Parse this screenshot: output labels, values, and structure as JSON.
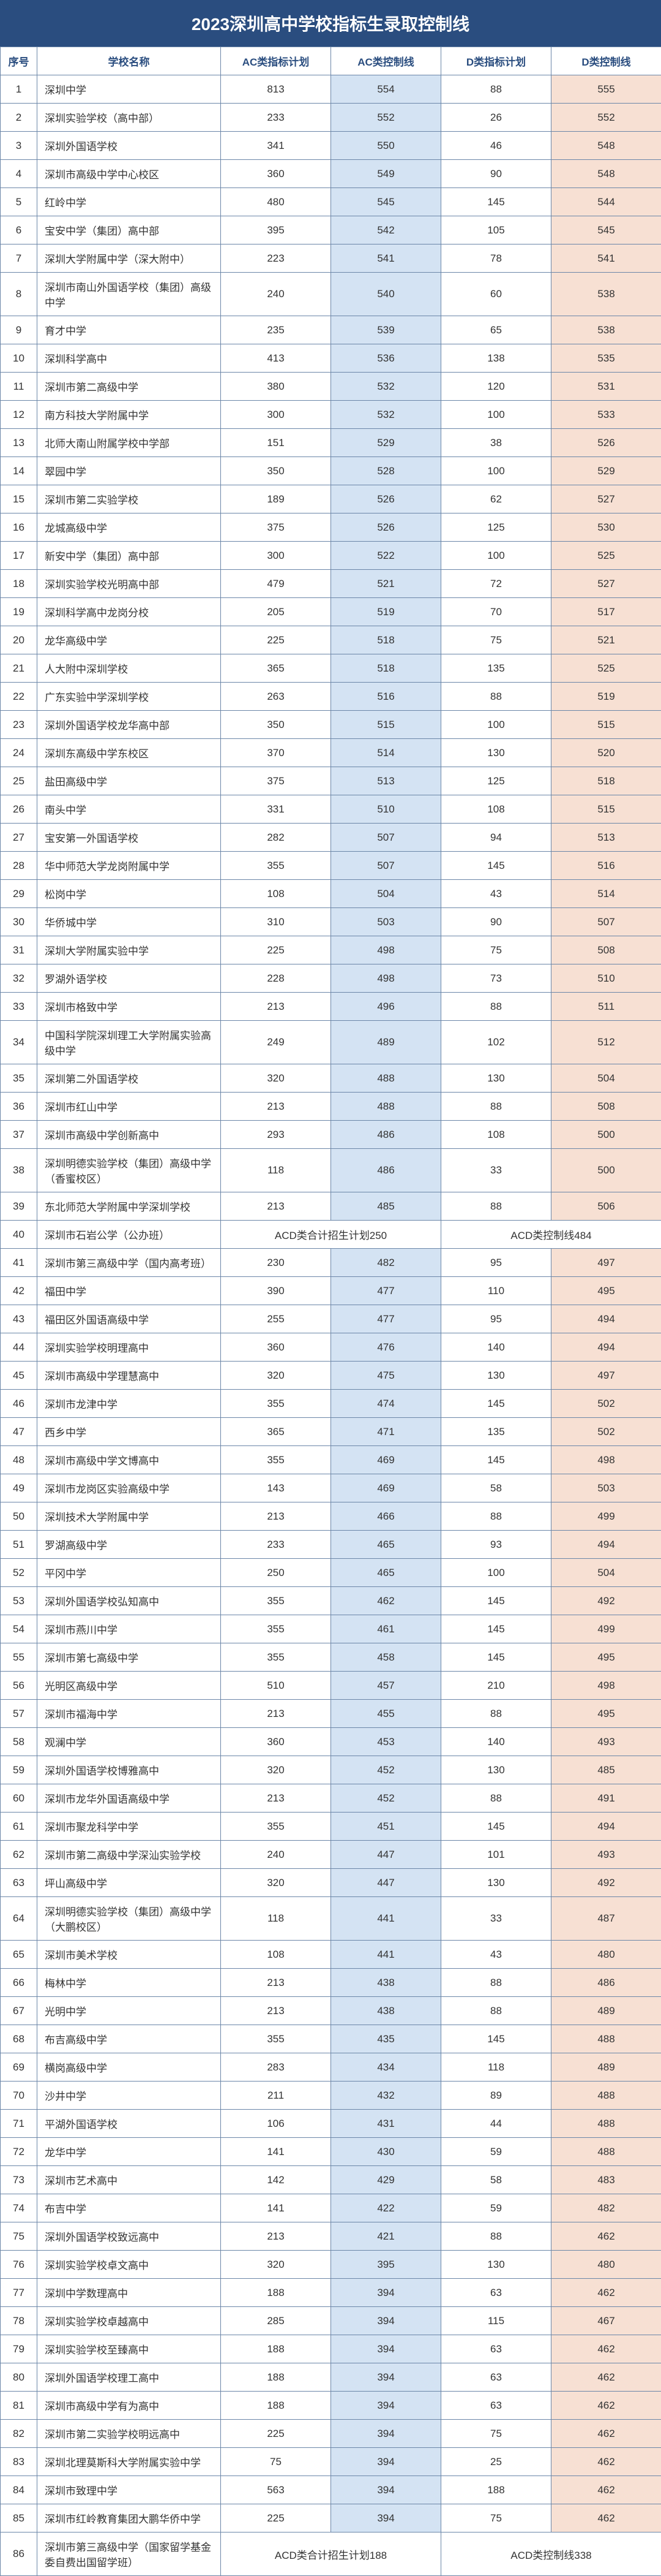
{
  "title": "2023深圳高中学校指标生录取控制线",
  "headers": {
    "seq": "序号",
    "name": "学校名称",
    "ac_plan": "AC类指标计划",
    "ac_ctrl": "AC类控制线",
    "d_plan": "D类指标计划",
    "d_ctrl": "D类控制线"
  },
  "rows": [
    {
      "seq": 1,
      "name": "深圳中学",
      "ac_plan": 813,
      "ac_ctrl": 554,
      "d_plan": 88,
      "d_ctrl": 555
    },
    {
      "seq": 2,
      "name": "深圳实验学校（高中部）",
      "ac_plan": 233,
      "ac_ctrl": 552,
      "d_plan": 26,
      "d_ctrl": 552
    },
    {
      "seq": 3,
      "name": "深圳外国语学校",
      "ac_plan": 341,
      "ac_ctrl": 550,
      "d_plan": 46,
      "d_ctrl": 548
    },
    {
      "seq": 4,
      "name": "深圳市高级中学中心校区",
      "ac_plan": 360,
      "ac_ctrl": 549,
      "d_plan": 90,
      "d_ctrl": 548
    },
    {
      "seq": 5,
      "name": "红岭中学",
      "ac_plan": 480,
      "ac_ctrl": 545,
      "d_plan": 145,
      "d_ctrl": 544
    },
    {
      "seq": 6,
      "name": "宝安中学（集团）高中部",
      "ac_plan": 395,
      "ac_ctrl": 542,
      "d_plan": 105,
      "d_ctrl": 545
    },
    {
      "seq": 7,
      "name": "深圳大学附属中学（深大附中）",
      "ac_plan": 223,
      "ac_ctrl": 541,
      "d_plan": 78,
      "d_ctrl": 541
    },
    {
      "seq": 8,
      "name": "深圳市南山外国语学校（集团）高级中学",
      "ac_plan": 240,
      "ac_ctrl": 540,
      "d_plan": 60,
      "d_ctrl": 538
    },
    {
      "seq": 9,
      "name": "育才中学",
      "ac_plan": 235,
      "ac_ctrl": 539,
      "d_plan": 65,
      "d_ctrl": 538
    },
    {
      "seq": 10,
      "name": "深圳科学高中",
      "ac_plan": 413,
      "ac_ctrl": 536,
      "d_plan": 138,
      "d_ctrl": 535
    },
    {
      "seq": 11,
      "name": "深圳市第二高级中学",
      "ac_plan": 380,
      "ac_ctrl": 532,
      "d_plan": 120,
      "d_ctrl": 531
    },
    {
      "seq": 12,
      "name": "南方科技大学附属中学",
      "ac_plan": 300,
      "ac_ctrl": 532,
      "d_plan": 100,
      "d_ctrl": 533
    },
    {
      "seq": 13,
      "name": "北师大南山附属学校中学部",
      "ac_plan": 151,
      "ac_ctrl": 529,
      "d_plan": 38,
      "d_ctrl": 526
    },
    {
      "seq": 14,
      "name": "翠园中学",
      "ac_plan": 350,
      "ac_ctrl": 528,
      "d_plan": 100,
      "d_ctrl": 529
    },
    {
      "seq": 15,
      "name": "深圳市第二实验学校",
      "ac_plan": 189,
      "ac_ctrl": 526,
      "d_plan": 62,
      "d_ctrl": 527
    },
    {
      "seq": 16,
      "name": "龙城高级中学",
      "ac_plan": 375,
      "ac_ctrl": 526,
      "d_plan": 125,
      "d_ctrl": 530
    },
    {
      "seq": 17,
      "name": "新安中学（集团）高中部",
      "ac_plan": 300,
      "ac_ctrl": 522,
      "d_plan": 100,
      "d_ctrl": 525
    },
    {
      "seq": 18,
      "name": "深圳实验学校光明高中部",
      "ac_plan": 479,
      "ac_ctrl": 521,
      "d_plan": 72,
      "d_ctrl": 527
    },
    {
      "seq": 19,
      "name": "深圳科学高中龙岗分校",
      "ac_plan": 205,
      "ac_ctrl": 519,
      "d_plan": 70,
      "d_ctrl": 517
    },
    {
      "seq": 20,
      "name": "龙华高级中学",
      "ac_plan": 225,
      "ac_ctrl": 518,
      "d_plan": 75,
      "d_ctrl": 521
    },
    {
      "seq": 21,
      "name": "人大附中深圳学校",
      "ac_plan": 365,
      "ac_ctrl": 518,
      "d_plan": 135,
      "d_ctrl": 525
    },
    {
      "seq": 22,
      "name": "广东实验中学深圳学校",
      "ac_plan": 263,
      "ac_ctrl": 516,
      "d_plan": 88,
      "d_ctrl": 519
    },
    {
      "seq": 23,
      "name": "深圳外国语学校龙华高中部",
      "ac_plan": 350,
      "ac_ctrl": 515,
      "d_plan": 100,
      "d_ctrl": 515
    },
    {
      "seq": 24,
      "name": "深圳东高级中学东校区",
      "ac_plan": 370,
      "ac_ctrl": 514,
      "d_plan": 130,
      "d_ctrl": 520
    },
    {
      "seq": 25,
      "name": "盐田高级中学",
      "ac_plan": 375,
      "ac_ctrl": 513,
      "d_plan": 125,
      "d_ctrl": 518
    },
    {
      "seq": 26,
      "name": "南头中学",
      "ac_plan": 331,
      "ac_ctrl": 510,
      "d_plan": 108,
      "d_ctrl": 515
    },
    {
      "seq": 27,
      "name": "宝安第一外国语学校",
      "ac_plan": 282,
      "ac_ctrl": 507,
      "d_plan": 94,
      "d_ctrl": 513
    },
    {
      "seq": 28,
      "name": "华中师范大学龙岗附属中学",
      "ac_plan": 355,
      "ac_ctrl": 507,
      "d_plan": 145,
      "d_ctrl": 516
    },
    {
      "seq": 29,
      "name": "松岗中学",
      "ac_plan": 108,
      "ac_ctrl": 504,
      "d_plan": 43,
      "d_ctrl": 514
    },
    {
      "seq": 30,
      "name": "华侨城中学",
      "ac_plan": 310,
      "ac_ctrl": 503,
      "d_plan": 90,
      "d_ctrl": 507
    },
    {
      "seq": 31,
      "name": "深圳大学附属实验中学",
      "ac_plan": 225,
      "ac_ctrl": 498,
      "d_plan": 75,
      "d_ctrl": 508
    },
    {
      "seq": 32,
      "name": "罗湖外语学校",
      "ac_plan": 228,
      "ac_ctrl": 498,
      "d_plan": 73,
      "d_ctrl": 510
    },
    {
      "seq": 33,
      "name": "深圳市格致中学",
      "ac_plan": 213,
      "ac_ctrl": 496,
      "d_plan": 88,
      "d_ctrl": 511
    },
    {
      "seq": 34,
      "name": "中国科学院深圳理工大学附属实验高级中学",
      "ac_plan": 249,
      "ac_ctrl": 489,
      "d_plan": 102,
      "d_ctrl": 512
    },
    {
      "seq": 35,
      "name": "深圳第二外国语学校",
      "ac_plan": 320,
      "ac_ctrl": 488,
      "d_plan": 130,
      "d_ctrl": 504
    },
    {
      "seq": 36,
      "name": "深圳市红山中学",
      "ac_plan": 213,
      "ac_ctrl": 488,
      "d_plan": 88,
      "d_ctrl": 508
    },
    {
      "seq": 37,
      "name": "深圳市高级中学创新高中",
      "ac_plan": 293,
      "ac_ctrl": 486,
      "d_plan": 108,
      "d_ctrl": 500
    },
    {
      "seq": 38,
      "name": "深圳明德实验学校（集团）高级中学（香蜜校区）",
      "ac_plan": 118,
      "ac_ctrl": 486,
      "d_plan": 33,
      "d_ctrl": 500
    },
    {
      "seq": 39,
      "name": "东北师范大学附属中学深圳学校",
      "ac_plan": 213,
      "ac_ctrl": 485,
      "d_plan": 88,
      "d_ctrl": 506
    },
    {
      "seq": 40,
      "name": "深圳市石岩公学（公办班）",
      "merge_ac": "ACD类合计招生计划250",
      "merge_d": "ACD类控制线484"
    },
    {
      "seq": 41,
      "name": "深圳市第三高级中学（国内高考班）",
      "ac_plan": 230,
      "ac_ctrl": 482,
      "d_plan": 95,
      "d_ctrl": 497
    },
    {
      "seq": 42,
      "name": "福田中学",
      "ac_plan": 390,
      "ac_ctrl": 477,
      "d_plan": 110,
      "d_ctrl": 495
    },
    {
      "seq": 43,
      "name": "福田区外国语高级中学",
      "ac_plan": 255,
      "ac_ctrl": 477,
      "d_plan": 95,
      "d_ctrl": 494
    },
    {
      "seq": 44,
      "name": "深圳实验学校明理高中",
      "ac_plan": 360,
      "ac_ctrl": 476,
      "d_plan": 140,
      "d_ctrl": 494
    },
    {
      "seq": 45,
      "name": "深圳市高级中学理慧高中",
      "ac_plan": 320,
      "ac_ctrl": 475,
      "d_plan": 130,
      "d_ctrl": 497
    },
    {
      "seq": 46,
      "name": "深圳市龙津中学",
      "ac_plan": 355,
      "ac_ctrl": 474,
      "d_plan": 145,
      "d_ctrl": 502
    },
    {
      "seq": 47,
      "name": "西乡中学",
      "ac_plan": 365,
      "ac_ctrl": 471,
      "d_plan": 135,
      "d_ctrl": 502
    },
    {
      "seq": 48,
      "name": "深圳市高级中学文博高中",
      "ac_plan": 355,
      "ac_ctrl": 469,
      "d_plan": 145,
      "d_ctrl": 498
    },
    {
      "seq": 49,
      "name": "深圳市龙岗区实验高级中学",
      "ac_plan": 143,
      "ac_ctrl": 469,
      "d_plan": 58,
      "d_ctrl": 503
    },
    {
      "seq": 50,
      "name": "深圳技术大学附属中学",
      "ac_plan": 213,
      "ac_ctrl": 466,
      "d_plan": 88,
      "d_ctrl": 499
    },
    {
      "seq": 51,
      "name": "罗湖高级中学",
      "ac_plan": 233,
      "ac_ctrl": 465,
      "d_plan": 93,
      "d_ctrl": 494
    },
    {
      "seq": 52,
      "name": "平冈中学",
      "ac_plan": 250,
      "ac_ctrl": 465,
      "d_plan": 100,
      "d_ctrl": 504
    },
    {
      "seq": 53,
      "name": "深圳外国语学校弘知高中",
      "ac_plan": 355,
      "ac_ctrl": 462,
      "d_plan": 145,
      "d_ctrl": 492
    },
    {
      "seq": 54,
      "name": "深圳市燕川中学",
      "ac_plan": 355,
      "ac_ctrl": 461,
      "d_plan": 145,
      "d_ctrl": 499
    },
    {
      "seq": 55,
      "name": "深圳市第七高级中学",
      "ac_plan": 355,
      "ac_ctrl": 458,
      "d_plan": 145,
      "d_ctrl": 495
    },
    {
      "seq": 56,
      "name": "光明区高级中学",
      "ac_plan": 510,
      "ac_ctrl": 457,
      "d_plan": 210,
      "d_ctrl": 498
    },
    {
      "seq": 57,
      "name": "深圳市福海中学",
      "ac_plan": 213,
      "ac_ctrl": 455,
      "d_plan": 88,
      "d_ctrl": 495
    },
    {
      "seq": 58,
      "name": "观澜中学",
      "ac_plan": 360,
      "ac_ctrl": 453,
      "d_plan": 140,
      "d_ctrl": 493
    },
    {
      "seq": 59,
      "name": "深圳外国语学校博雅高中",
      "ac_plan": 320,
      "ac_ctrl": 452,
      "d_plan": 130,
      "d_ctrl": 485
    },
    {
      "seq": 60,
      "name": "深圳市龙华外国语高级中学",
      "ac_plan": 213,
      "ac_ctrl": 452,
      "d_plan": 88,
      "d_ctrl": 491
    },
    {
      "seq": 61,
      "name": "深圳市聚龙科学中学",
      "ac_plan": 355,
      "ac_ctrl": 451,
      "d_plan": 145,
      "d_ctrl": 494
    },
    {
      "seq": 62,
      "name": "深圳市第二高级中学深汕实验学校",
      "ac_plan": 240,
      "ac_ctrl": 447,
      "d_plan": 101,
      "d_ctrl": 493
    },
    {
      "seq": 63,
      "name": "坪山高级中学",
      "ac_plan": 320,
      "ac_ctrl": 447,
      "d_plan": 130,
      "d_ctrl": 492
    },
    {
      "seq": 64,
      "name": "深圳明德实验学校（集团）高级中学（大鹏校区）",
      "ac_plan": 118,
      "ac_ctrl": 441,
      "d_plan": 33,
      "d_ctrl": 487
    },
    {
      "seq": 65,
      "name": "深圳市美术学校",
      "ac_plan": 108,
      "ac_ctrl": 441,
      "d_plan": 43,
      "d_ctrl": 480
    },
    {
      "seq": 66,
      "name": "梅林中学",
      "ac_plan": 213,
      "ac_ctrl": 438,
      "d_plan": 88,
      "d_ctrl": 486
    },
    {
      "seq": 67,
      "name": "光明中学",
      "ac_plan": 213,
      "ac_ctrl": 438,
      "d_plan": 88,
      "d_ctrl": 489
    },
    {
      "seq": 68,
      "name": "布吉高级中学",
      "ac_plan": 355,
      "ac_ctrl": 435,
      "d_plan": 145,
      "d_ctrl": 488
    },
    {
      "seq": 69,
      "name": "横岗高级中学",
      "ac_plan": 283,
      "ac_ctrl": 434,
      "d_plan": 118,
      "d_ctrl": 489
    },
    {
      "seq": 70,
      "name": "沙井中学",
      "ac_plan": 211,
      "ac_ctrl": 432,
      "d_plan": 89,
      "d_ctrl": 488
    },
    {
      "seq": 71,
      "name": "平湖外国语学校",
      "ac_plan": 106,
      "ac_ctrl": 431,
      "d_plan": 44,
      "d_ctrl": 488
    },
    {
      "seq": 72,
      "name": "龙华中学",
      "ac_plan": 141,
      "ac_ctrl": 430,
      "d_plan": 59,
      "d_ctrl": 488
    },
    {
      "seq": 73,
      "name": "深圳市艺术高中",
      "ac_plan": 142,
      "ac_ctrl": 429,
      "d_plan": 58,
      "d_ctrl": 483
    },
    {
      "seq": 74,
      "name": "布吉中学",
      "ac_plan": 141,
      "ac_ctrl": 422,
      "d_plan": 59,
      "d_ctrl": 482
    },
    {
      "seq": 75,
      "name": "深圳外国语学校致远高中",
      "ac_plan": 213,
      "ac_ctrl": 421,
      "d_plan": 88,
      "d_ctrl": 462
    },
    {
      "seq": 76,
      "name": "深圳实验学校卓文高中",
      "ac_plan": 320,
      "ac_ctrl": 395,
      "d_plan": 130,
      "d_ctrl": 480
    },
    {
      "seq": 77,
      "name": "深圳中学数理高中",
      "ac_plan": 188,
      "ac_ctrl": 394,
      "d_plan": 63,
      "d_ctrl": 462
    },
    {
      "seq": 78,
      "name": "深圳实验学校卓越高中",
      "ac_plan": 285,
      "ac_ctrl": 394,
      "d_plan": 115,
      "d_ctrl": 467
    },
    {
      "seq": 79,
      "name": "深圳实验学校至臻高中",
      "ac_plan": 188,
      "ac_ctrl": 394,
      "d_plan": 63,
      "d_ctrl": 462
    },
    {
      "seq": 80,
      "name": "深圳外国语学校理工高中",
      "ac_plan": 188,
      "ac_ctrl": 394,
      "d_plan": 63,
      "d_ctrl": 462
    },
    {
      "seq": 81,
      "name": "深圳市高级中学有为高中",
      "ac_plan": 188,
      "ac_ctrl": 394,
      "d_plan": 63,
      "d_ctrl": 462
    },
    {
      "seq": 82,
      "name": "深圳市第二实验学校明远高中",
      "ac_plan": 225,
      "ac_ctrl": 394,
      "d_plan": 75,
      "d_ctrl": 462
    },
    {
      "seq": 83,
      "name": "深圳北理莫斯科大学附属实验中学",
      "ac_plan": 75,
      "ac_ctrl": 394,
      "d_plan": 25,
      "d_ctrl": 462
    },
    {
      "seq": 84,
      "name": "深圳市致理中学",
      "ac_plan": 563,
      "ac_ctrl": 394,
      "d_plan": 188,
      "d_ctrl": 462
    },
    {
      "seq": 85,
      "name": "深圳市红岭教育集团大鹏华侨中学",
      "ac_plan": 225,
      "ac_ctrl": 394,
      "d_plan": 75,
      "d_ctrl": 462
    },
    {
      "seq": 86,
      "name": "深圳市第三高级中学（国家留学基金委自费出国留学班）",
      "merge_ac": "ACD类合计招生计划188",
      "merge_d": "ACD类控制线338"
    }
  ]
}
